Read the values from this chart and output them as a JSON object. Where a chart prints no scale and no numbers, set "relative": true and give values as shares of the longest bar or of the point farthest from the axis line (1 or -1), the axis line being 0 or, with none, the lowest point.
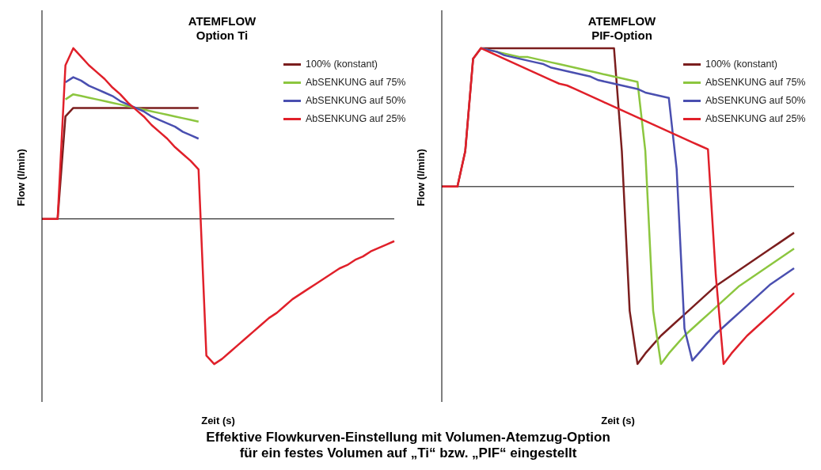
{
  "chart_data": [
    {
      "type": "line",
      "title": "ATEMFLOW",
      "subtitle": "Option Ti",
      "xlabel": "Zeit (s)",
      "ylabel": "Flow (l/min)",
      "relative": true,
      "legend": "top right",
      "marker": "none",
      "grid": false,
      "tick_labels": false,
      "annotations": [
        "Effektive Flowkurven-Einstellung mit Volumen-Atemzug-Option\nfür ein festes Volumen auf „Ti“ bzw. „PIF“ eingestellt"
      ],
      "categories": [
        null,
        null,
        null,
        null,
        null,
        null,
        null,
        null,
        null,
        null,
        null,
        null,
        null,
        null,
        null,
        null,
        null,
        null,
        null,
        null,
        null,
        null,
        null,
        null,
        null,
        null,
        null,
        null,
        null,
        null,
        null,
        null,
        null,
        null,
        null,
        null,
        null,
        null,
        null,
        null,
        null,
        null,
        null,
        null,
        null,
        null
      ],
      "series": [
        {
          "name": "100% (konstant)",
          "color": "#7b1e1e",
          "values": [
            0,
            0,
            0,
            0.6,
            0.65,
            0.65,
            0.65,
            0.65,
            0.65,
            0.65,
            0.65,
            0.65,
            0.65,
            0.65,
            0.65,
            0.65,
            0.65,
            0.65,
            0.65,
            0.65,
            0.65,
            null,
            null,
            null,
            null,
            null,
            null,
            null,
            null,
            null,
            null,
            null,
            null,
            null,
            null,
            null,
            null,
            null,
            null,
            null,
            null,
            null,
            null,
            null,
            null,
            null
          ]
        },
        {
          "name": "AbSENKUNG auf 75%",
          "color": "#8cc63f",
          "values": [
            null,
            null,
            null,
            0.7,
            0.73,
            0.72,
            0.71,
            0.7,
            0.69,
            0.68,
            0.67,
            0.66,
            0.65,
            0.64,
            0.63,
            0.62,
            0.61,
            0.6,
            0.59,
            0.58,
            0.57,
            null,
            null,
            null,
            null,
            null,
            null,
            null,
            null,
            null,
            null,
            null,
            null,
            null,
            null,
            null,
            null,
            null,
            null,
            null,
            null,
            null,
            null,
            null,
            null,
            null
          ]
        },
        {
          "name": "AbSENKUNG auf 50%",
          "color": "#4a4fb0",
          "values": [
            null,
            null,
            null,
            0.8,
            0.83,
            0.81,
            0.78,
            0.76,
            0.74,
            0.72,
            0.69,
            0.67,
            0.65,
            0.63,
            0.6,
            0.58,
            0.56,
            0.54,
            0.51,
            0.49,
            0.47,
            null,
            null,
            null,
            null,
            null,
            null,
            null,
            null,
            null,
            null,
            null,
            null,
            null,
            null,
            null,
            null,
            null,
            null,
            null,
            null,
            null,
            null,
            null,
            null,
            null
          ]
        },
        {
          "name": "AbSENKUNG auf 25%",
          "color": "#e0202a",
          "values": [
            0,
            0,
            0,
            0.9,
            1,
            0.95,
            0.9,
            0.86,
            0.82,
            0.77,
            0.73,
            0.68,
            0.64,
            0.6,
            0.55,
            0.51,
            0.47,
            0.42,
            0.38,
            0.34,
            0.29,
            -0.8,
            -0.85,
            -0.82,
            -0.78,
            -0.74,
            -0.7,
            -0.66,
            -0.62,
            -0.58,
            -0.55,
            -0.51,
            -0.47,
            -0.44,
            -0.41,
            -0.38,
            -0.35,
            -0.32,
            -0.29,
            -0.27,
            -0.24,
            -0.22,
            -0.19,
            -0.17,
            -0.15,
            -0.13
          ]
        }
      ]
    },
    {
      "type": "line",
      "title": "ATEMFLOW",
      "subtitle": "PIF-Option",
      "xlabel": "Zeit (s)",
      "ylabel": "Flow (l/min)",
      "relative": true,
      "legend": "top right",
      "marker": "none",
      "grid": false,
      "tick_labels": false,
      "categories": [
        null,
        null,
        null,
        null,
        null,
        null,
        null,
        null,
        null,
        null,
        null,
        null,
        null,
        null,
        null,
        null,
        null,
        null,
        null,
        null,
        null,
        null,
        null,
        null,
        null,
        null,
        null,
        null,
        null,
        null,
        null,
        null,
        null,
        null,
        null,
        null,
        null,
        null,
        null,
        null,
        null,
        null,
        null,
        null,
        null,
        null
      ],
      "series": [
        {
          "name": "100% (konstant)",
          "color": "#7b1e1e",
          "values": [
            0,
            0,
            0,
            0.2,
            0.72,
            0.78,
            0.78,
            0.78,
            0.78,
            0.78,
            0.78,
            0.78,
            0.78,
            0.78,
            0.78,
            0.78,
            0.78,
            0.78,
            0.78,
            0.78,
            0.78,
            0.78,
            0.78,
            0.2,
            -0.7,
            -1.0,
            -0.94,
            -0.89,
            -0.84,
            -0.8,
            -0.76,
            -0.72,
            -0.68,
            -0.64,
            -0.6,
            -0.56,
            -0.53,
            -0.5,
            -0.47,
            -0.44,
            -0.41,
            -0.38,
            -0.35,
            -0.32,
            -0.29,
            -0.26
          ]
        },
        {
          "name": "AbSENKUNG auf 75%",
          "color": "#8cc63f",
          "values": [
            null,
            null,
            null,
            null,
            null,
            0.78,
            0.77,
            0.76,
            0.75,
            0.74,
            0.73,
            0.73,
            0.72,
            0.71,
            0.7,
            0.69,
            0.68,
            0.67,
            0.66,
            0.65,
            0.64,
            0.63,
            0.62,
            0.61,
            0.6,
            0.59,
            0.2,
            -0.7,
            -1.0,
            -0.94,
            -0.89,
            -0.84,
            -0.8,
            -0.76,
            -0.72,
            -0.68,
            -0.64,
            -0.6,
            -0.56,
            -0.53,
            -0.5,
            -0.47,
            -0.44,
            -0.41,
            -0.38,
            -0.35
          ]
        },
        {
          "name": "AbSENKUNG auf 50%",
          "color": "#4a4fb0",
          "values": [
            null,
            null,
            null,
            null,
            null,
            0.78,
            0.77,
            0.76,
            0.74,
            0.73,
            0.72,
            0.71,
            0.7,
            0.69,
            0.67,
            0.66,
            0.65,
            0.64,
            0.63,
            0.62,
            0.6,
            0.59,
            0.58,
            0.57,
            0.56,
            0.55,
            0.53,
            0.52,
            0.51,
            0.5,
            0.1,
            -0.8,
            -0.98,
            -0.93,
            -0.88,
            -0.83,
            -0.79,
            -0.75,
            -0.71,
            -0.67,
            -0.63,
            -0.59,
            -0.55,
            -0.52,
            -0.49,
            -0.46
          ]
        },
        {
          "name": "AbSENKUNG auf 25%",
          "color": "#e0202a",
          "values": [
            0,
            0,
            0,
            0.2,
            0.72,
            0.78,
            0.76,
            0.74,
            0.72,
            0.7,
            0.68,
            0.66,
            0.64,
            0.62,
            0.6,
            0.58,
            0.57,
            0.55,
            0.53,
            0.51,
            0.49,
            0.47,
            0.45,
            0.43,
            0.41,
            0.39,
            0.37,
            0.35,
            0.33,
            0.31,
            0.29,
            0.27,
            0.25,
            0.23,
            0.21,
            -0.5,
            -1.0,
            -0.94,
            -0.89,
            -0.84,
            -0.8,
            -0.76,
            -0.72,
            -0.68,
            -0.64,
            -0.6
          ]
        }
      ]
    }
  ]
}
